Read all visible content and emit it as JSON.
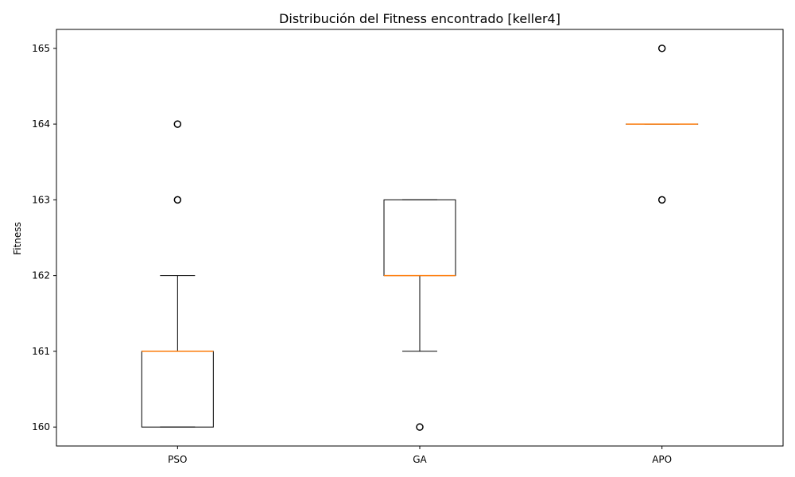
{
  "chart_data": {
    "type": "boxplot",
    "title": "Distribución del Fitness encontrado [keller4]",
    "xlabel": "",
    "ylabel": "Fitness",
    "ylim": [
      159.75,
      165.25
    ],
    "yticks": [
      160,
      161,
      162,
      163,
      164,
      165
    ],
    "grid": false,
    "categories": [
      "PSO",
      "GA",
      "APO"
    ],
    "boxes": [
      {
        "name": "PSO",
        "whisker_low": 160,
        "q1": 160,
        "median": 161,
        "q3": 161,
        "whisker_high": 162,
        "outliers": [
          163,
          164
        ]
      },
      {
        "name": "GA",
        "whisker_low": 161,
        "q1": 162,
        "median": 162,
        "q3": 163,
        "whisker_high": 163,
        "outliers": [
          160
        ]
      },
      {
        "name": "APO",
        "whisker_low": 164,
        "q1": 164,
        "median": 164,
        "q3": 164,
        "whisker_high": 164,
        "outliers": [
          163,
          165
        ]
      }
    ],
    "colors": {
      "box": "#000000",
      "median": "#ff7f0e",
      "outlier_edge": "#000000"
    }
  }
}
